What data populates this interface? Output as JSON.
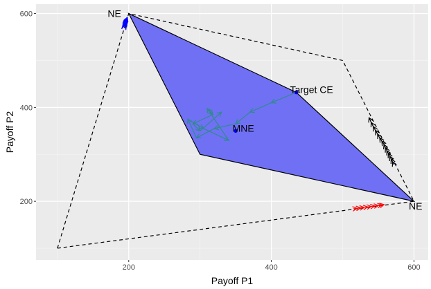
{
  "chart_data": {
    "type": "scatter",
    "xlabel": "Payoff P1",
    "ylabel": "Payoff P2",
    "xlim": [
      70,
      620
    ],
    "ylim": [
      75,
      620
    ],
    "x_ticks": [
      200,
      400,
      600
    ],
    "y_ticks": [
      200,
      400,
      600
    ],
    "grid": true,
    "outer_region": {
      "style": "dashed",
      "color": "#000000",
      "vertices": [
        [
          100,
          100
        ],
        [
          200,
          600
        ],
        [
          500,
          500
        ],
        [
          600,
          200
        ],
        [
          100,
          100
        ]
      ]
    },
    "ce_polytope": {
      "fill": "#7070f5",
      "stroke": "#000000",
      "vertices": [
        [
          200,
          600
        ],
        [
          435,
          432
        ],
        [
          600,
          200
        ],
        [
          300,
          300
        ]
      ]
    },
    "points": [
      {
        "label": "NE",
        "x": 200,
        "y": 600,
        "color": "#000000"
      },
      {
        "label": "NE",
        "x": 600,
        "y": 200,
        "color": "#000000"
      },
      {
        "label": "MNE",
        "x": 350,
        "y": 350,
        "color": "#0000ff"
      },
      {
        "label": "Target CE",
        "x": 435,
        "y": 432,
        "color": "#0000ff"
      }
    ],
    "trajectories": [
      {
        "color": "#0000ff",
        "points": [
          [
            194,
            572
          ],
          [
            194.5,
            575
          ],
          [
            195,
            578
          ],
          [
            195.5,
            581
          ],
          [
            196,
            584
          ],
          [
            196.5,
            586
          ],
          [
            197,
            588
          ],
          [
            197.5,
            590
          ],
          [
            198,
            592
          ]
        ]
      },
      {
        "color": "#ff0000",
        "points": [
          [
            515,
            184
          ],
          [
            520,
            185
          ],
          [
            525,
            186
          ],
          [
            530,
            187
          ],
          [
            535,
            188
          ],
          [
            540,
            189
          ],
          [
            545,
            190
          ],
          [
            550,
            191
          ],
          [
            555,
            192
          ],
          [
            558,
            193
          ]
        ]
      },
      {
        "color": "#000000",
        "points": [
          [
            572,
            278
          ],
          [
            570,
            284
          ],
          [
            568,
            290
          ],
          [
            566,
            296
          ],
          [
            564,
            302
          ],
          [
            562,
            308
          ],
          [
            560,
            314
          ],
          [
            558,
            321
          ],
          [
            555,
            328
          ],
          [
            552,
            335
          ],
          [
            549,
            343
          ],
          [
            546,
            351
          ],
          [
            543,
            359
          ],
          [
            540,
            368
          ],
          [
            537,
            378
          ]
        ]
      },
      {
        "color": "#2e8b8b",
        "points": [
          [
            435,
            432
          ],
          [
            400,
            410
          ],
          [
            370,
            390
          ],
          [
            350,
            365
          ],
          [
            320,
            355
          ],
          [
            295,
            335
          ],
          [
            283,
            375
          ],
          [
            305,
            355
          ],
          [
            340,
            330
          ],
          [
            310,
            398
          ],
          [
            318,
            385
          ],
          [
            290,
            365
          ],
          [
            300,
            350
          ],
          [
            330,
            390
          ]
        ]
      }
    ]
  }
}
